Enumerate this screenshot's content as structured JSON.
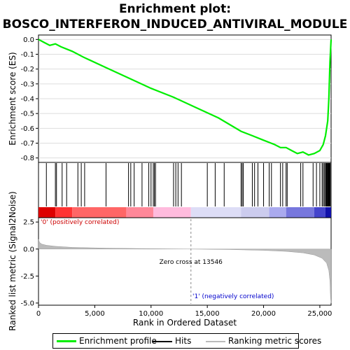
{
  "title_line1": "Enrichment plot:",
  "title_line2": "BOSCO_INTERFERON_INDUCED_ANTIVIRAL_MODULE",
  "colors": {
    "enrichment": "#00ee00",
    "hits": "#000000",
    "ranking": "#bbbbbb",
    "pos_text": "#cc0000",
    "neg_text": "#0000cc"
  },
  "chart_data": [
    {
      "type": "line",
      "name": "enrichment-profile",
      "ylabel": "Enrichment score (ES)",
      "xlim": [
        0,
        26000
      ],
      "ylim": [
        -0.83,
        0.03
      ],
      "yticks": [
        "0.0",
        "-0.1",
        "-0.2",
        "-0.3",
        "-0.4",
        "-0.5",
        "-0.6",
        "-0.7",
        "-0.8"
      ],
      "grid": true,
      "series": [
        {
          "name": "Enrichment profile",
          "x": [
            0,
            500,
            1000,
            1500,
            2000,
            3000,
            4000,
            6000,
            8000,
            10000,
            12000,
            14000,
            16000,
            18000,
            19000,
            20000,
            21000,
            21500,
            22000,
            22500,
            23000,
            23500,
            24000,
            24500,
            25000,
            25300,
            25500,
            25700,
            25800,
            25900,
            26000
          ],
          "y": [
            0.0,
            -0.02,
            -0.04,
            -0.03,
            -0.05,
            -0.08,
            -0.12,
            -0.19,
            -0.26,
            -0.33,
            -0.39,
            -0.46,
            -0.53,
            -0.62,
            -0.65,
            -0.68,
            -0.71,
            -0.73,
            -0.73,
            -0.75,
            -0.77,
            -0.76,
            -0.78,
            -0.77,
            -0.75,
            -0.71,
            -0.65,
            -0.55,
            -0.4,
            -0.15,
            0.0
          ]
        }
      ]
    },
    {
      "type": "scatter",
      "name": "hits",
      "xlim": [
        0,
        26000
      ],
      "series": [
        {
          "name": "Hits",
          "x": [
            700,
            1500,
            1600,
            2100,
            2500,
            3500,
            3800,
            4100,
            6000,
            8000,
            8200,
            8500,
            9200,
            9800,
            10000,
            10200,
            10300,
            10400,
            12000,
            12200,
            12400,
            12700,
            15000,
            15700,
            16500,
            18000,
            18100,
            18200,
            19000,
            19200,
            19500,
            20000,
            20500,
            20700,
            21500,
            21700,
            22000,
            22100,
            23300,
            23500,
            24400,
            24700,
            25000,
            25200,
            25300,
            25400,
            25500,
            25550,
            25600,
            25650,
            25700,
            25720,
            25740,
            25760,
            25780,
            25800,
            25820,
            25840,
            25860,
            25880,
            25900,
            25920
          ]
        }
      ]
    },
    {
      "type": "area",
      "name": "ranking-metric",
      "ylabel": "Ranked list metric (Signal2Noise)",
      "xlabel": "Rank in Ordered Dataset",
      "xlim": [
        0,
        26000
      ],
      "ylim": [
        -5.2,
        2.9
      ],
      "xticks": [
        "0",
        "5,000",
        "10,000",
        "15,000",
        "20,000",
        "25,000"
      ],
      "xtick_values": [
        0,
        5000,
        10000,
        15000,
        20000,
        25000
      ],
      "yticks": [
        "2.5",
        "0.0",
        "-2.5",
        "-5.0"
      ],
      "ytick_values": [
        2.5,
        0.0,
        -2.5,
        -5.0
      ],
      "series": [
        {
          "name": "Ranking metric scores",
          "x": [
            0,
            100,
            300,
            700,
            1500,
            3000,
            6000,
            10000,
            13546,
            17000,
            20000,
            22000,
            23500,
            24500,
            25200,
            25600,
            25800,
            25900,
            25950,
            26000
          ],
          "y": [
            0.9,
            0.6,
            0.45,
            0.35,
            0.25,
            0.15,
            0.08,
            0.03,
            0.0,
            -0.05,
            -0.12,
            -0.22,
            -0.35,
            -0.55,
            -0.85,
            -1.3,
            -2.0,
            -3.0,
            -4.5,
            -5.0
          ]
        }
      ],
      "annotations": {
        "zero_cross": "Zero cross at 13546",
        "zero_cross_value": 13546,
        "pos_label": "'0' (positively correlated)",
        "neg_label": "'1' (negatively correlated)"
      }
    }
  ],
  "legend": {
    "enrichment": "Enrichment profile",
    "hits": "Hits",
    "ranking": "Ranking metric scores"
  }
}
